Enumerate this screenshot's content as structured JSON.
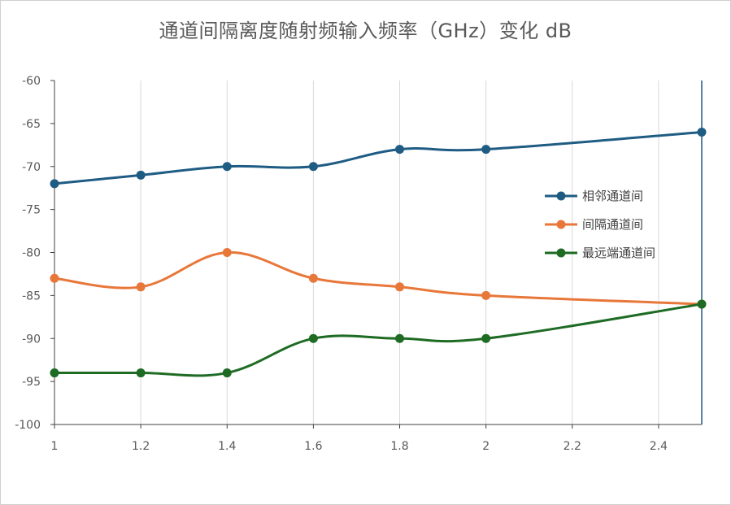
{
  "chart_data": {
    "type": "line",
    "title": "通道间隔离度随射频输入频率（GHz）变化 dB",
    "xlabel": "",
    "ylabel": "",
    "xlim": [
      1,
      2.5
    ],
    "ylim": [
      -100,
      -60
    ],
    "x_ticks": [
      1,
      1.2,
      1.4,
      1.6,
      1.8,
      2,
      2.2,
      2.4
    ],
    "y_ticks": [
      -60,
      -65,
      -70,
      -75,
      -80,
      -85,
      -90,
      -95,
      -100
    ],
    "grid": "vertical",
    "legend_position": "right",
    "smooth": true,
    "series": [
      {
        "name": "相邻通道间",
        "color": "#1f5c84",
        "x": [
          1,
          1.2,
          1.4,
          1.6,
          1.8,
          2,
          2.5
        ],
        "values": [
          -72,
          -71,
          -70,
          -70,
          -68,
          -68,
          -66
        ]
      },
      {
        "name": "间隔通道间",
        "color": "#e8773a",
        "x": [
          1,
          1.2,
          1.4,
          1.6,
          1.8,
          2,
          2.5
        ],
        "values": [
          -83,
          -84,
          -80,
          -83,
          -84,
          -85,
          -86
        ]
      },
      {
        "name": "最远端通道间",
        "color": "#1e6b24",
        "x": [
          1,
          1.2,
          1.4,
          1.6,
          1.8,
          2,
          2.5
        ],
        "values": [
          -94,
          -94,
          -94,
          -90,
          -90,
          -90,
          -86
        ]
      }
    ]
  }
}
